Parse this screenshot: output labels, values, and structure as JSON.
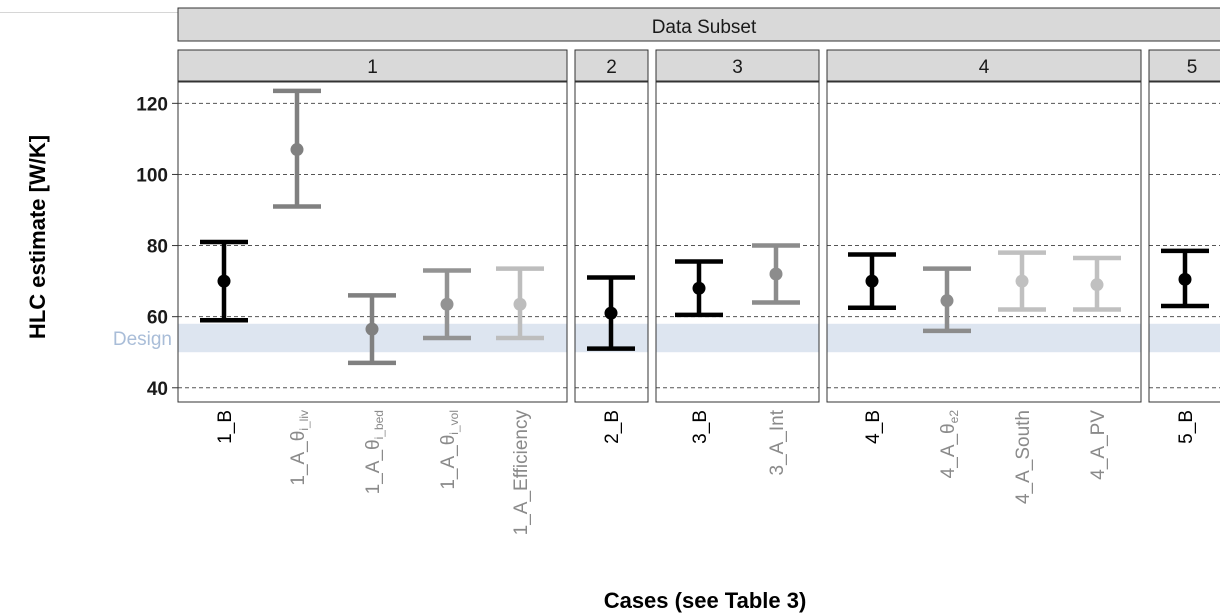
{
  "chart_data": {
    "type": "scatter",
    "subtitle": "Data Subset",
    "xlabel": "Cases (see Table 3)",
    "ylabel": "HLC estimate [W/K]",
    "ylim": [
      36,
      126
    ],
    "yticks": [
      40,
      60,
      80,
      100,
      120
    ],
    "grid": "horizontal dashed",
    "design_band": {
      "label": "Design",
      "range": [
        50,
        58
      ],
      "color": "#dde5f0"
    },
    "facets": [
      {
        "label": "1",
        "cases": [
          {
            "label": "1_B",
            "sub": "",
            "estimate": 70,
            "lower": 59,
            "upper": 81,
            "color": "#000000"
          },
          {
            "label": "1_A_θ",
            "sub": "i_liv",
            "estimate": 107,
            "lower": 91,
            "upper": 123.5,
            "color": "#808080"
          },
          {
            "label": "1_A_θ",
            "sub": "i_bed",
            "estimate": 56.5,
            "lower": 47,
            "upper": 66,
            "color": "#808080"
          },
          {
            "label": "1_A_θ",
            "sub": "i_vol",
            "estimate": 63.5,
            "lower": 54,
            "upper": 73,
            "color": "#939393"
          },
          {
            "label": "1_A_Efficiency",
            "sub": "",
            "estimate": 63.5,
            "lower": 54,
            "upper": 73.5,
            "color": "#bdbdbd"
          }
        ]
      },
      {
        "label": "2",
        "cases": [
          {
            "label": "2_B",
            "sub": "",
            "estimate": 61,
            "lower": 51,
            "upper": 71,
            "color": "#000000"
          }
        ]
      },
      {
        "label": "3",
        "cases": [
          {
            "label": "3_B",
            "sub": "",
            "estimate": 68,
            "lower": 60.5,
            "upper": 75.5,
            "color": "#000000"
          },
          {
            "label": "3_A_Int",
            "sub": "",
            "estimate": 72,
            "lower": 64,
            "upper": 80,
            "color": "#8c8c8c"
          }
        ]
      },
      {
        "label": "4",
        "cases": [
          {
            "label": "4_B",
            "sub": "",
            "estimate": 70,
            "lower": 62.5,
            "upper": 77.5,
            "color": "#000000"
          },
          {
            "label": "4_A_θ",
            "sub": "e2",
            "estimate": 64.5,
            "lower": 56,
            "upper": 73.5,
            "color": "#8c8c8c"
          },
          {
            "label": "4_A_South",
            "sub": "",
            "estimate": 70,
            "lower": 62,
            "upper": 78,
            "color": "#c0c0c0"
          },
          {
            "label": "4_A_PV",
            "sub": "",
            "estimate": 69,
            "lower": 62,
            "upper": 76.5,
            "color": "#c0c0c0"
          }
        ]
      },
      {
        "label": "5",
        "cases": [
          {
            "label": "5_B",
            "sub": "",
            "estimate": 70.5,
            "lower": 63,
            "upper": 78.5,
            "color": "#000000"
          }
        ]
      }
    ]
  }
}
